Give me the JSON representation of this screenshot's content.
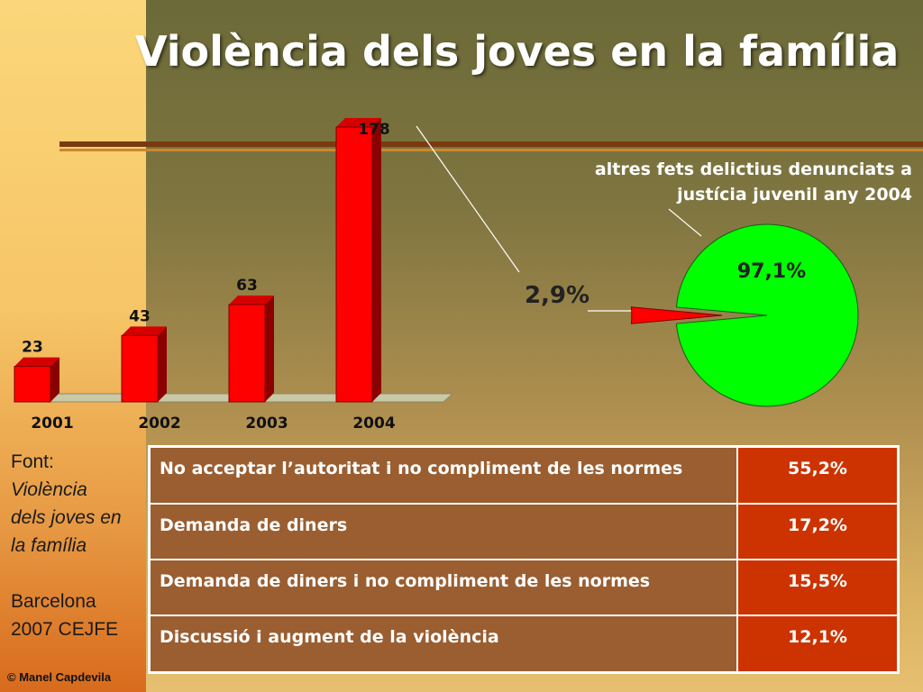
{
  "title": "Violència dels joves en la família",
  "chart_data": [
    {
      "type": "bar",
      "categories": [
        "2001",
        "2002",
        "2003",
        "2004"
      ],
      "values": [
        23,
        43,
        63,
        178
      ],
      "colors": {
        "bar_front": "#ff0000",
        "bar_side": "#8b0000",
        "bar_top": "#d40000"
      }
    },
    {
      "type": "pie",
      "caption": "altres fets delictius denunciats a justícia juvenil any 2004",
      "slices": [
        {
          "label": "97,1%",
          "value": 97.1,
          "color": "#00ff00"
        },
        {
          "label": "2,9%",
          "value": 2.9,
          "color": "#ff0000"
        }
      ]
    }
  ],
  "source": {
    "prefix": "Font:",
    "name_lines": [
      "Violència",
      "dels joves en",
      "la família"
    ],
    "place_lines": [
      "Barcelona",
      "2007 CEJFE"
    ]
  },
  "reasons_table": [
    {
      "label": "No acceptar l’autoritat i no compliment de les normes",
      "pct": "55,2%"
    },
    {
      "label": "Demanda de diners",
      "pct": "17,2%"
    },
    {
      "label": "Demanda de diners i no compliment de les normes",
      "pct": "15,5%"
    },
    {
      "label": "Discussió i augment de la violència",
      "pct": "12,1%"
    }
  ],
  "copyright": "© Manel Capdevila",
  "colors": {
    "title": "#ffffff",
    "table_label_bg": "#9a5e31",
    "table_pct_bg": "#cc3300"
  }
}
